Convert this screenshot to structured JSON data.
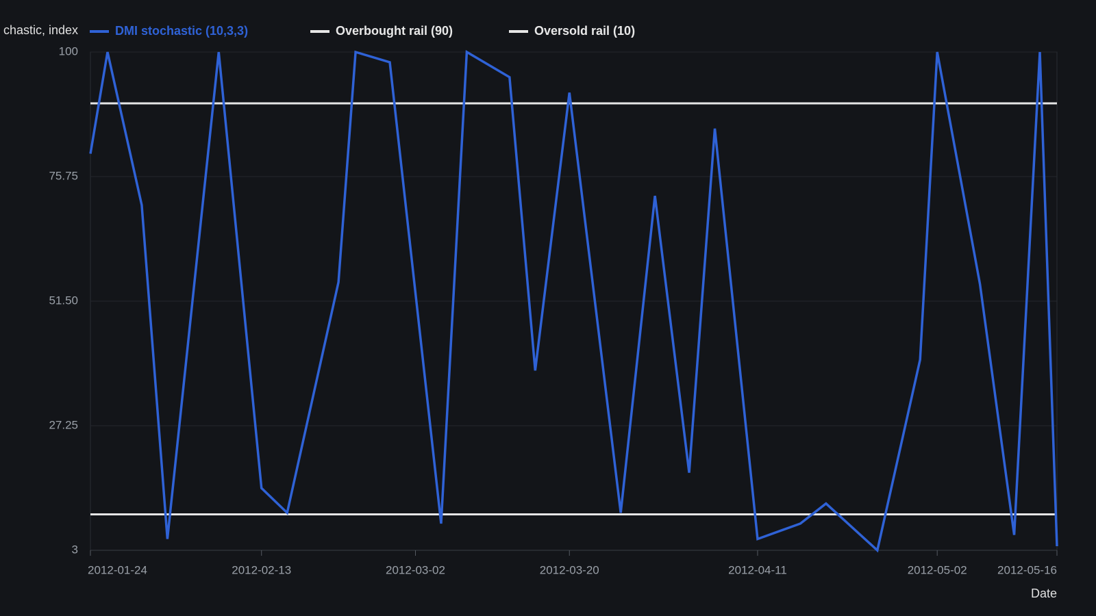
{
  "chart_data": {
    "type": "line",
    "y_label": "chastic, index",
    "x_label": "Date",
    "x": [
      "2012-01-24",
      "2012-01-26",
      "2012-01-30",
      "2012-02-02",
      "2012-02-08",
      "2012-02-13",
      "2012-02-16",
      "2012-02-22",
      "2012-02-24",
      "2012-02-28",
      "2012-03-05",
      "2012-03-08",
      "2012-03-13",
      "2012-03-16",
      "2012-03-20",
      "2012-03-26",
      "2012-03-30",
      "2012-04-03",
      "2012-04-06",
      "2012-04-11",
      "2012-04-16",
      "2012-04-19",
      "2012-04-25",
      "2012-04-30",
      "2012-05-02",
      "2012-05-07",
      "2012-05-11",
      "2012-05-14",
      "2012-05-16"
    ],
    "series": [
      {
        "name": "DMI stochastic (10,3,3)",
        "color": "#2f62d6",
        "values": [
          80.2,
          100,
          70.2,
          5.2,
          100,
          15.1,
          10.3,
          55.2,
          100,
          98.0,
          8.2,
          100,
          95.1,
          38.0,
          92.1,
          10.3,
          72.0,
          18.1,
          85.1,
          5.2,
          8.2,
          12.1,
          3,
          40.1,
          100,
          54.8,
          6.0,
          100,
          3.8
        ]
      }
    ],
    "reference_lines": [
      {
        "name": "Overbought rail (90)",
        "value": 90,
        "color": "#e6e6e6"
      },
      {
        "name": "Oversold rail (10)",
        "value": 10,
        "color": "#e6e6e6"
      }
    ],
    "xlim": [
      "2012-01-24",
      "2012-05-16"
    ],
    "xticks": [
      "2012-01-24",
      "2012-02-13",
      "2012-03-02",
      "2012-03-20",
      "2012-04-11",
      "2012-05-02",
      "2012-05-16"
    ],
    "ylim": [
      3,
      100
    ],
    "yticks": [
      3,
      27.25,
      {
        "value": 51.5,
        "label": "51.50"
      },
      75.75,
      100
    ],
    "grid": true
  }
}
